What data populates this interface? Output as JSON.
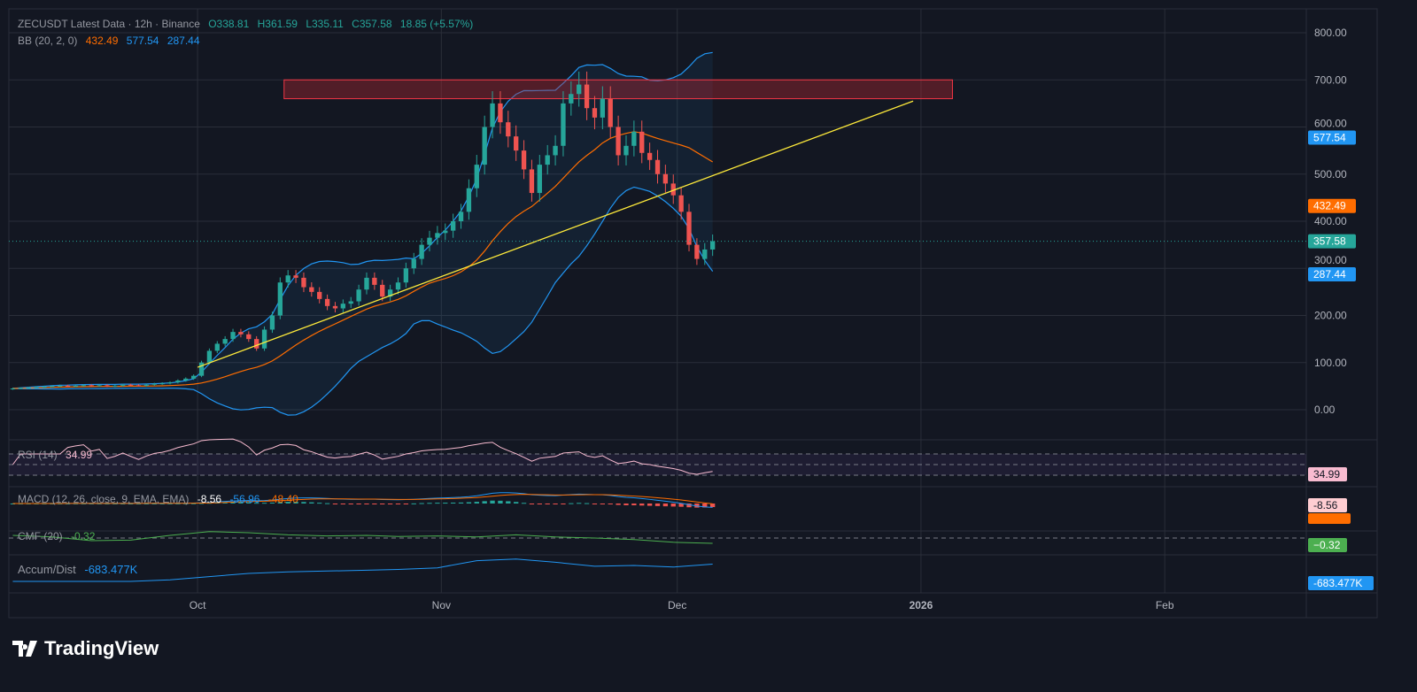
{
  "header": {
    "symbol": "ZECUSDT Latest Data · 12h · Binance",
    "open": "O338.81",
    "high": "H361.59",
    "low": "L335.11",
    "close": "C357.58",
    "change": "18.85 (+5.57%)"
  },
  "bb": {
    "label": "BB (20, 2, 0)",
    "basis": "432.49",
    "upper": "577.54",
    "lower": "287.44"
  },
  "rsi": {
    "label": "RSI (14)",
    "value": "34.99"
  },
  "macd": {
    "label": "MACD (12, 26, close, 9, EMA, EMA)",
    "hist": "-8.56",
    "macd": "-56.96",
    "signal": "-48.40"
  },
  "cmf": {
    "label": "CMF (20)",
    "value": "-0.32"
  },
  "ad": {
    "label": "Accum/Dist",
    "value": "-683.477K"
  },
  "logo": "TradingView",
  "colors": {
    "up": "#26a69a",
    "down": "#ef5350",
    "bb_band": "#2196f3",
    "bb_basis": "#ff6d00",
    "rsi": "#f8bbd0",
    "cmf": "#4caf50",
    "ad": "#2196f3",
    "trendline": "#ffeb3b",
    "zone": "#b22833"
  },
  "chart_data": {
    "type": "candlestick",
    "start_date": "2025-09-07",
    "interval": "1d approx",
    "closes": [
      45,
      46,
      47,
      48,
      49,
      50,
      51,
      50,
      51,
      52,
      51,
      52,
      50,
      51,
      53,
      52,
      51,
      53,
      55,
      56,
      58,
      62,
      66,
      72,
      100,
      125,
      140,
      150,
      165,
      160,
      150,
      130,
      170,
      200,
      270,
      285,
      280,
      260,
      250,
      235,
      220,
      215,
      225,
      230,
      255,
      280,
      265,
      240,
      255,
      270,
      300,
      320,
      350,
      365,
      375,
      380,
      400,
      420,
      470,
      520,
      600,
      650,
      610,
      580,
      550,
      510,
      460,
      520,
      540,
      560,
      650,
      670,
      690,
      640,
      620,
      660,
      600,
      540,
      560,
      590,
      545,
      530,
      500,
      480,
      455,
      420,
      350,
      320,
      340,
      357.58
    ],
    "yaxis": {
      "ticks": [
        0,
        100,
        200,
        300,
        400,
        500,
        600,
        700,
        800
      ],
      "tick_labels": [
        "0.00",
        "100.00",
        "200.00",
        "300.00",
        "400.00",
        "500.00",
        "600.00",
        "700.00",
        "800.00"
      ],
      "range": [
        -5,
        830
      ]
    },
    "xaxis": {
      "range": [
        "2025-09-07",
        "2026-02-19"
      ],
      "ticks": [
        {
          "date": "2025-10-01",
          "label": "Oct"
        },
        {
          "date": "2025-11-01",
          "label": "Nov"
        },
        {
          "date": "2025-12-01",
          "label": "Dec"
        },
        {
          "date": "2026-01-01",
          "label": "2026"
        },
        {
          "date": "2026-02-01",
          "label": "Feb"
        }
      ]
    },
    "last_price": 357.58,
    "trendline": {
      "from": {
        "date": "2025-10-01",
        "price": 90
      },
      "to": {
        "date": "2025-12-31",
        "price": 655
      }
    },
    "zone": {
      "from": "2025-10-12",
      "to": "2026-01-05",
      "low": 660,
      "high": 700
    },
    "rsi_levels": [
      70,
      50,
      30
    ],
    "cmf_series": [
      0.05,
      0.02,
      -0.05,
      -0.04,
      0.05,
      0.12,
      0.1,
      0.06,
      0.04,
      0.05,
      0.03,
      0.04,
      0.02,
      0.06,
      0.02,
      0.0,
      -0.03,
      -0.08,
      -0.1
    ],
    "ad_series": [
      -900,
      -900,
      -900,
      -900,
      -880,
      -840,
      -800,
      -780,
      -770,
      -760,
      -750,
      -730,
      -640,
      -620,
      -660,
      -710,
      -700,
      -720,
      -683.477
    ]
  }
}
